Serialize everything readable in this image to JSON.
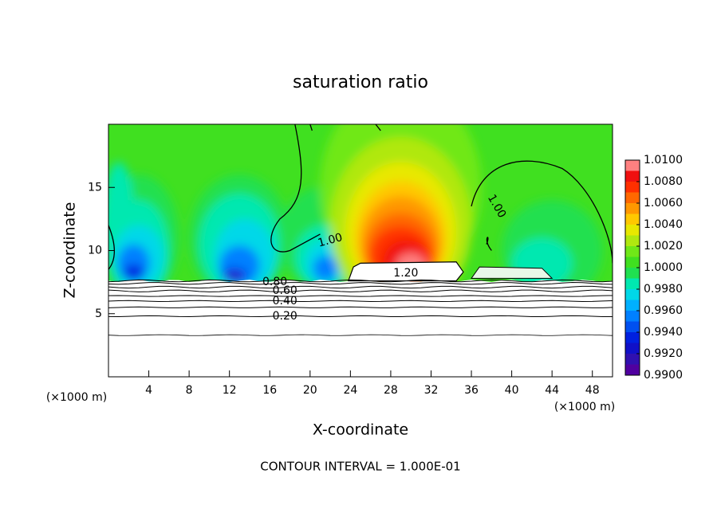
{
  "chart_data": {
    "type": "contour",
    "title": "saturation ratio",
    "x_label": "X-coordinate",
    "y_label": "Z-coordinate",
    "x_unit": "(×1000 m)",
    "footer": "CONTOUR INTERVAL = 1.000E-01",
    "xlim": [
      0,
      50
    ],
    "xticks": [
      4,
      8,
      12,
      16,
      20,
      24,
      28,
      32,
      36,
      40,
      44,
      48
    ],
    "ylim": [
      0,
      20
    ],
    "yticks": [
      5,
      10,
      15
    ],
    "colorbar": {
      "levels": [
        0.99,
        0.991,
        0.992,
        0.993,
        0.994,
        0.995,
        0.996,
        0.997,
        0.998,
        0.999,
        1.0,
        1.001,
        1.002,
        1.003,
        1.004,
        1.005,
        1.006,
        1.007,
        1.008,
        1.009,
        1.01
      ],
      "colors": [
        "#5000a0",
        "#3010b0",
        "#1010c8",
        "#0020e0",
        "#0050f0",
        "#0080ff",
        "#00b0ff",
        "#00d8e8",
        "#00e8b0",
        "#20e050",
        "#40e020",
        "#70e818",
        "#b0e810",
        "#e8e800",
        "#ffc800",
        "#ff9800",
        "#ff6800",
        "#ff3000",
        "#f01010",
        "#ff8080"
      ],
      "ticks": [
        {
          "value": 0.99,
          "label": "0.9900"
        },
        {
          "value": 0.992,
          "label": "0.9920"
        },
        {
          "value": 0.994,
          "label": "0.9940"
        },
        {
          "value": 0.996,
          "label": "0.9960"
        },
        {
          "value": 0.998,
          "label": "0.9980"
        },
        {
          "value": 1.0,
          "label": "1.0000"
        },
        {
          "value": 1.002,
          "label": "1.0020"
        },
        {
          "value": 1.004,
          "label": "1.0040"
        },
        {
          "value": 1.006,
          "label": "1.0060"
        },
        {
          "value": 1.008,
          "label": "1.0080"
        },
        {
          "value": 1.01,
          "label": "1.0100"
        }
      ]
    },
    "contour_labels": [
      {
        "value": 0.2,
        "label": "0.20"
      },
      {
        "value": 0.4,
        "label": "0.40"
      },
      {
        "value": 0.6,
        "label": "0.60"
      },
      {
        "value": 0.8,
        "label": "0.80"
      },
      {
        "value": 1.0,
        "label": "1.00"
      },
      {
        "value": 1.0,
        "label": "1.00"
      },
      {
        "value": 1.2,
        "label": "1.20"
      }
    ]
  }
}
